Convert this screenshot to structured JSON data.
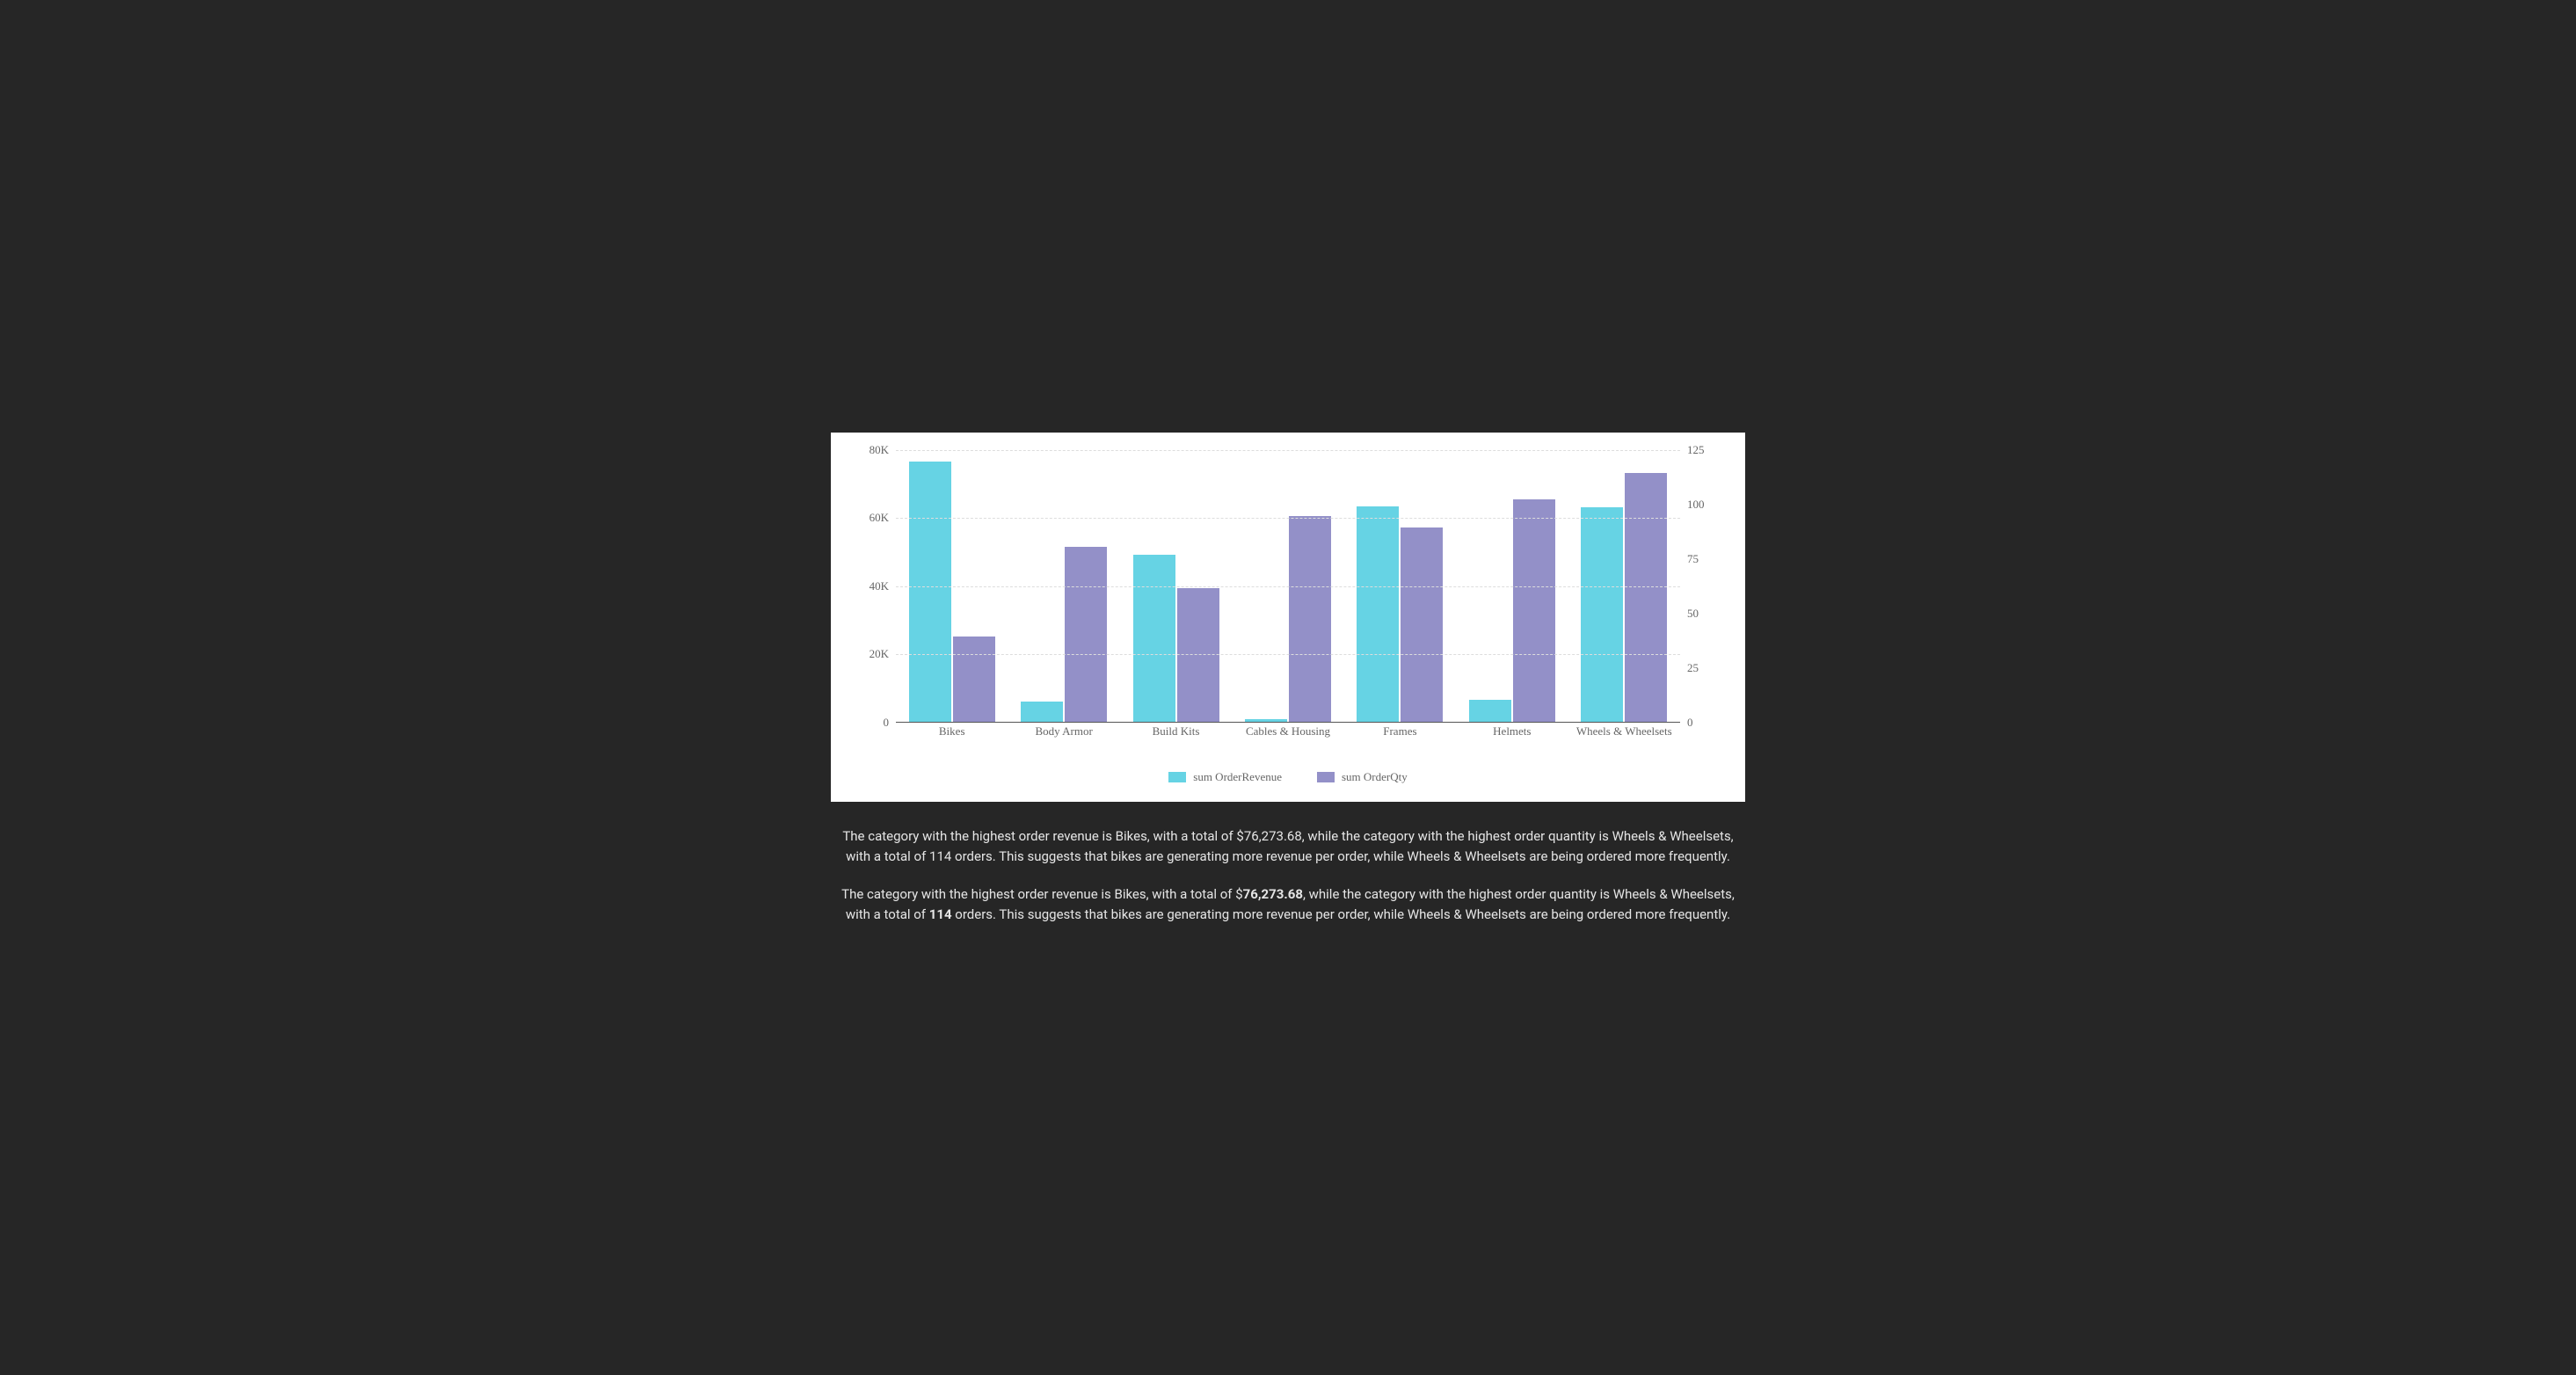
{
  "chart": {
    "type": "bar",
    "background_color": "#ffffff",
    "grid_color": "#dddddd",
    "axis_color": "#555555",
    "label_color": "#666666",
    "label_fontsize": 13,
    "label_fontfamily": "serif",
    "bar_gap": 2,
    "categories": [
      "Bikes",
      "Body Armor",
      "Build Kits",
      "Cables & Housing",
      "Frames",
      "Helmets",
      "Wheels & Wheelsets"
    ],
    "series": [
      {
        "name": "sum OrderRevenue",
        "color": "#66d3e4",
        "axis": "left",
        "values": [
          76273.68,
          5800,
          49000,
          600,
          63200,
          6200,
          62900
        ]
      },
      {
        "name": "sum OrderQty",
        "color": "#9390c8",
        "axis": "right",
        "values": [
          39,
          80,
          61,
          94,
          89,
          102,
          114
        ]
      }
    ],
    "y_left": {
      "min": 0,
      "max": 80000,
      "ticks": [
        0,
        20000,
        40000,
        60000,
        80000
      ],
      "tick_labels": [
        "0",
        "20K",
        "40K",
        "60K",
        "80K"
      ]
    },
    "y_right": {
      "min": 0,
      "max": 125,
      "ticks": [
        0,
        25,
        50,
        75,
        100,
        125
      ],
      "tick_labels": [
        "0",
        "25",
        "50",
        "75",
        "100",
        "125"
      ]
    }
  },
  "summary": {
    "p1_pre": "The category with the highest order revenue is Bikes, with a total of $76,273.68, while the category with the highest order quantity is Wheels & Wheelsets, with a total of 114 orders. This suggests that bikes are generating more revenue per order, while Wheels & Wheelsets are being ordered more frequently.",
    "p2_a": "The category with the highest order revenue is Bikes, with a total of $",
    "p2_bold1": "76,273.68",
    "p2_b": ", while the category with the highest order quantity is Wheels & Wheelsets, with a total of ",
    "p2_bold2": "114",
    "p2_c": " orders. This suggests that bikes are generating more revenue per order, while Wheels & Wheelsets are being ordered more frequently."
  },
  "page_background": "#262626",
  "text_color": "#e5e5e5"
}
